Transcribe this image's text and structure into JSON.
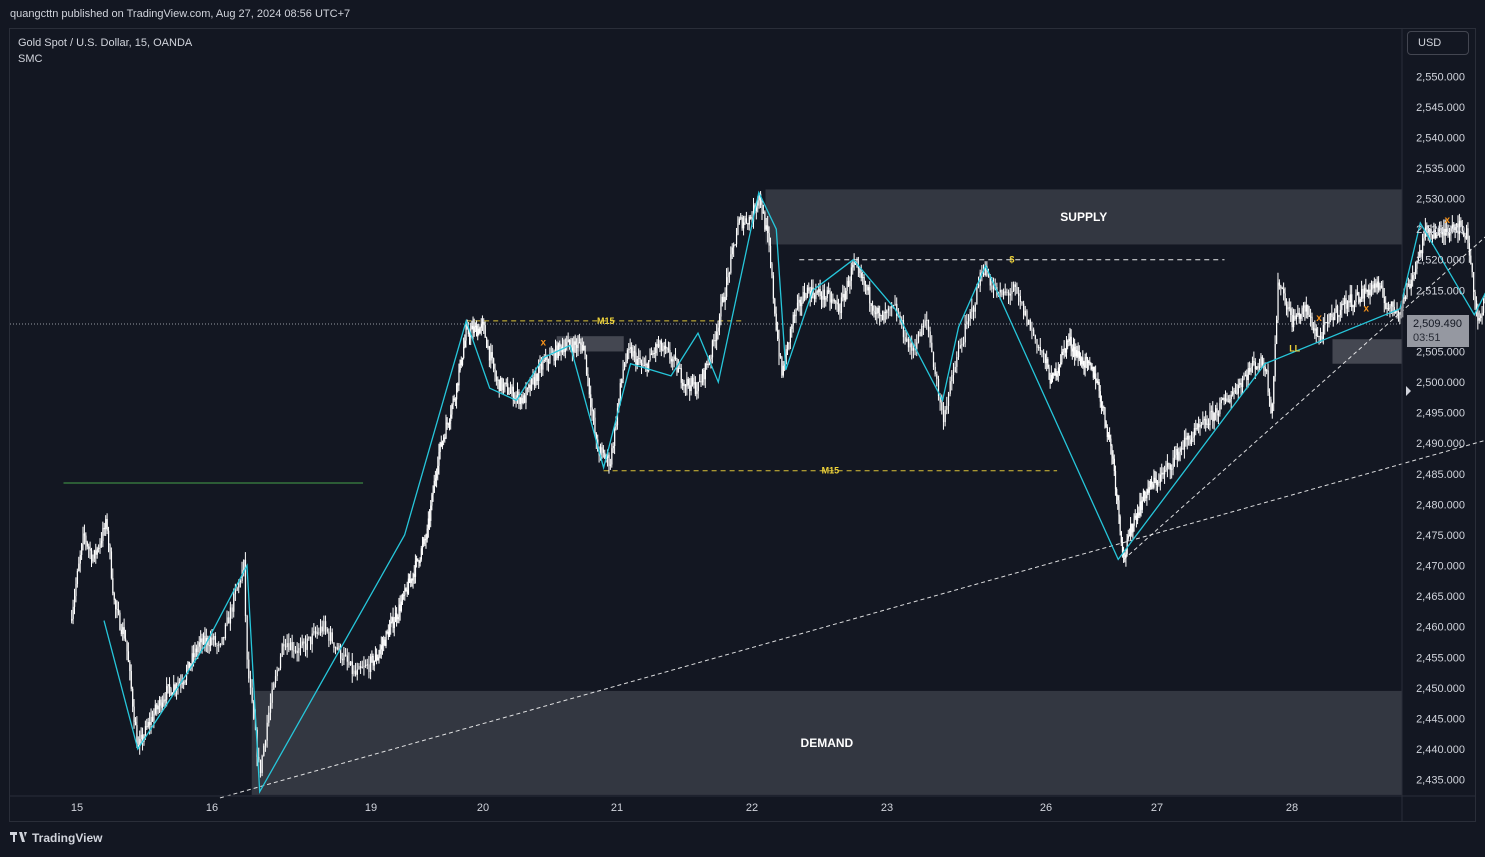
{
  "header": {
    "published": "quangcttn published on TradingView.com, Aug 27, 2024 08:56 UTC+7"
  },
  "symbol": {
    "title": "Gold Spot / U.S. Dollar, 15, OANDA",
    "indicator": "SMC"
  },
  "currency": "USD",
  "last_price": {
    "value": "2,509.490",
    "countdown": "03:51"
  },
  "footer": {
    "brand": "TradingView",
    "logo_icon": "tradingview-logo-icon"
  },
  "colors": {
    "background": "#131722",
    "candle": "#ffffff",
    "zigzag": "#26c6da",
    "zone": "#434651",
    "label_yellow": "#f0d43a",
    "marker_orange": "#f7931a",
    "green_line": "#4caf50"
  },
  "chart_data": {
    "type": "candlestick",
    "y_axis": {
      "ylim": [
        2432,
        2557
      ],
      "ticks": [
        2435,
        2440,
        2445,
        2450,
        2455,
        2460,
        2465,
        2470,
        2475,
        2480,
        2485,
        2490,
        2495,
        2500,
        2505,
        2510,
        2515,
        2520,
        2525,
        2530,
        2535,
        2540,
        2545,
        2550
      ],
      "tick_labels": [
        "2,435.000",
        "2,440.000",
        "2,445.000",
        "2,450.000",
        "2,455.000",
        "2,460.000",
        "2,465.000",
        "2,470.000",
        "2,475.000",
        "2,480.000",
        "2,485.000",
        "2,490.000",
        "2,495.000",
        "2,500.000",
        "2,505.000",
        "2,510.000",
        "2,515.000",
        "2,520.000",
        "2,525.000",
        "2,530.000",
        "2,535.000",
        "2,540.000",
        "2,545.000",
        "2,550.000"
      ]
    },
    "x_axis": {
      "day_labels": [
        "15",
        "16",
        "19",
        "20",
        "21",
        "22",
        "23",
        "26",
        "27",
        "28"
      ],
      "day_pos": [
        0,
        1,
        2,
        3,
        4,
        5,
        6,
        7,
        8,
        9
      ]
    },
    "price_path": [
      [
        -0.05,
        2461
      ],
      [
        0.05,
        2475
      ],
      [
        0.12,
        2471
      ],
      [
        0.22,
        2477
      ],
      [
        0.28,
        2463
      ],
      [
        0.36,
        2458
      ],
      [
        0.45,
        2440
      ],
      [
        0.55,
        2445
      ],
      [
        0.65,
        2449
      ],
      [
        0.8,
        2452
      ],
      [
        0.9,
        2457
      ],
      [
        1.0,
        2458
      ],
      [
        1.05,
        2456
      ],
      [
        1.1,
        2461
      ],
      [
        1.2,
        2470
      ],
      [
        1.22,
        2454
      ],
      [
        1.3,
        2436
      ],
      [
        1.35,
        2445
      ],
      [
        1.45,
        2458
      ],
      [
        1.55,
        2456
      ],
      [
        1.7,
        2460
      ],
      [
        1.8,
        2456
      ],
      [
        1.9,
        2452
      ],
      [
        2.05,
        2455
      ],
      [
        2.3,
        2465
      ],
      [
        2.5,
        2475
      ],
      [
        2.6,
        2488
      ],
      [
        2.75,
        2498
      ],
      [
        2.85,
        2508
      ],
      [
        3.0,
        2509
      ],
      [
        3.1,
        2500
      ],
      [
        3.3,
        2497
      ],
      [
        3.45,
        2503
      ],
      [
        3.6,
        2506
      ],
      [
        3.75,
        2506
      ],
      [
        3.85,
        2489
      ],
      [
        3.95,
        2487
      ],
      [
        4.05,
        2503
      ],
      [
        4.1,
        2505
      ],
      [
        4.2,
        2502
      ],
      [
        4.3,
        2506
      ],
      [
        4.4,
        2504
      ],
      [
        4.5,
        2500
      ],
      [
        4.6,
        2499
      ],
      [
        4.7,
        2505
      ],
      [
        4.8,
        2515
      ],
      [
        4.9,
        2526
      ],
      [
        5.0,
        2527
      ],
      [
        5.05,
        2531
      ],
      [
        5.12,
        2523
      ],
      [
        5.18,
        2509
      ],
      [
        5.22,
        2501
      ],
      [
        5.3,
        2510
      ],
      [
        5.4,
        2515
      ],
      [
        5.55,
        2514
      ],
      [
        5.65,
        2512
      ],
      [
        5.75,
        2519
      ],
      [
        5.85,
        2515
      ],
      [
        5.95,
        2510
      ],
      [
        6.05,
        2512
      ],
      [
        6.15,
        2505
      ],
      [
        6.25,
        2510
      ],
      [
        6.35,
        2494
      ],
      [
        6.45,
        2505
      ],
      [
        6.55,
        2513
      ],
      [
        6.6,
        2519
      ],
      [
        6.7,
        2514
      ],
      [
        6.8,
        2515
      ],
      [
        6.9,
        2509
      ],
      [
        7.05,
        2500
      ],
      [
        7.2,
        2507
      ],
      [
        7.3,
        2504
      ],
      [
        7.45,
        2501
      ],
      [
        7.52,
        2495
      ],
      [
        7.6,
        2488
      ],
      [
        7.7,
        2471
      ],
      [
        7.78,
        2477
      ],
      [
        7.9,
        2482
      ],
      [
        8.05,
        2485
      ],
      [
        8.2,
        2490
      ],
      [
        8.35,
        2493
      ],
      [
        8.55,
        2498
      ],
      [
        8.72,
        2503
      ],
      [
        8.8,
        2503
      ],
      [
        8.85,
        2495
      ],
      [
        8.9,
        2517
      ],
      [
        9.0,
        2510
      ],
      [
        9.1,
        2512
      ],
      [
        9.2,
        2507
      ],
      [
        9.3,
        2511
      ],
      [
        9.4,
        2513
      ],
      [
        9.5,
        2514
      ],
      [
        9.62,
        2516
      ],
      [
        9.72,
        2512
      ],
      [
        9.8,
        2512
      ],
      [
        9.9,
        2518
      ],
      [
        10.0,
        2525
      ],
      [
        10.1,
        2524
      ],
      [
        10.2,
        2526
      ],
      [
        10.3,
        2524
      ],
      [
        10.38,
        2509
      ],
      [
        10.45,
        2515
      ],
      [
        10.55,
        2512
      ],
      [
        10.62,
        2523
      ],
      [
        10.72,
        2518
      ],
      [
        10.85,
        2515
      ],
      [
        10.95,
        2516
      ],
      [
        11.05,
        2509.5
      ]
    ],
    "zigzag": [
      [
        0.2,
        2461
      ],
      [
        0.45,
        2440
      ],
      [
        0.95,
        2457
      ],
      [
        1.22,
        2470
      ],
      [
        1.3,
        2433
      ],
      [
        2.3,
        2475
      ],
      [
        2.85,
        2510
      ],
      [
        3.05,
        2499
      ],
      [
        3.25,
        2497
      ],
      [
        3.45,
        2504
      ],
      [
        3.65,
        2506
      ],
      [
        3.9,
        2486
      ],
      [
        4.1,
        2503
      ],
      [
        4.4,
        2501
      ],
      [
        4.6,
        2508
      ],
      [
        4.75,
        2500
      ],
      [
        5.05,
        2531
      ],
      [
        5.18,
        2525
      ],
      [
        5.25,
        2502
      ],
      [
        5.45,
        2515
      ],
      [
        5.75,
        2520
      ],
      [
        6.05,
        2512
      ],
      [
        6.35,
        2497
      ],
      [
        6.45,
        2509
      ],
      [
        6.62,
        2519
      ],
      [
        7.65,
        2471
      ],
      [
        8.8,
        2503
      ],
      [
        9.8,
        2512
      ],
      [
        9.95,
        2526
      ],
      [
        10.35,
        2511
      ],
      [
        10.65,
        2524
      ],
      [
        10.95,
        2508
      ]
    ],
    "trendlines": [
      {
        "from": [
          1.05,
          2432
        ],
        "to": [
          12.6,
          2504
        ],
        "style": "dashed"
      },
      {
        "from": [
          7.7,
          2471
        ],
        "to": [
          10.75,
          2530
        ],
        "style": "dashed"
      }
    ],
    "zones": [
      {
        "label": "SUPPLY",
        "x0": 5.1,
        "x1": 11.8,
        "y0": 2522.5,
        "y1": 2531.5
      },
      {
        "label": "DEMAND",
        "x0": 1.25,
        "x1": 12.6,
        "y0": 2432.5,
        "y1": 2449.5
      },
      {
        "label": "",
        "x0": 3.55,
        "x1": 4.05,
        "y0": 2505,
        "y1": 2507.5
      },
      {
        "label": "",
        "x0": 9.3,
        "x1": 9.9,
        "y0": 2503,
        "y1": 2507
      }
    ],
    "levels": [
      {
        "label": "M15",
        "x0": 2.85,
        "x1": 4.95,
        "y": 2510,
        "color": "#f0d43a"
      },
      {
        "label": "M15",
        "x0": 3.9,
        "x1": 7.1,
        "y": 2485.5,
        "color": "#f0d43a"
      },
      {
        "label": "$",
        "x0": 5.35,
        "x1": 8.5,
        "y": 2520,
        "color": "#ffffff"
      },
      {
        "label": "",
        "x0": -0.1,
        "x1": 1.95,
        "y": 2483.5,
        "color": "#4caf50"
      }
    ],
    "markers": [
      {
        "label": "LL",
        "x": 9.02,
        "y": 2505
      },
      {
        "label": "x",
        "x": 3.45,
        "y": 2506
      },
      {
        "label": "x",
        "x": 9.2,
        "y": 2510
      },
      {
        "label": "x",
        "x": 9.55,
        "y": 2511.5
      },
      {
        "label": "x",
        "x": 10.15,
        "y": 2526
      }
    ],
    "last_price": 2509.49
  }
}
